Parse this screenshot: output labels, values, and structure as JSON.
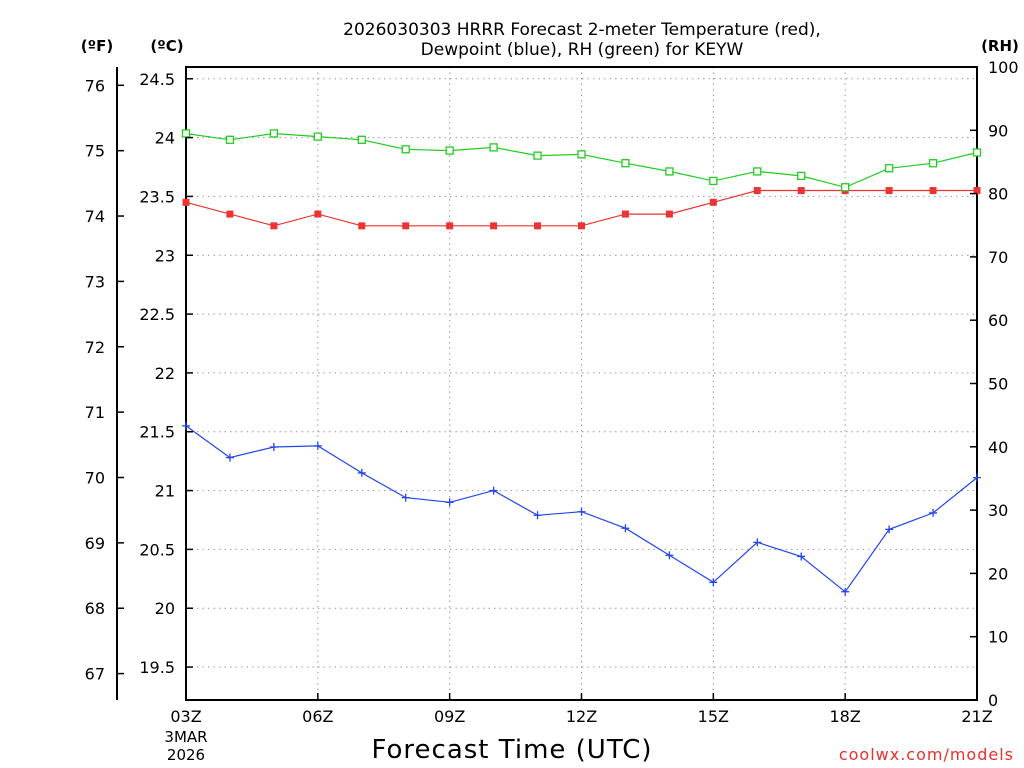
{
  "chart_data": {
    "type": "line",
    "title_line1": "2026030303 HRRR Forecast 2-meter Temperature (red),",
    "title_line2": "Dewpoint (blue), RH (green) for KEYW",
    "unit_f": "(ºF)",
    "unit_c": "(ºC)",
    "unit_rh": "(RH)",
    "xlabel": "Forecast Time (UTC)",
    "date_labels": [
      "3MAR",
      "2026"
    ],
    "credit": "coolwx.com/models",
    "x_hours": [
      3,
      4,
      5,
      6,
      7,
      8,
      9,
      10,
      11,
      12,
      13,
      14,
      15,
      16,
      17,
      18,
      19,
      20,
      21
    ],
    "x_ticks": [
      {
        "hour": 3,
        "label": "03Z"
      },
      {
        "hour": 6,
        "label": "06Z"
      },
      {
        "hour": 9,
        "label": "09Z"
      },
      {
        "hour": 12,
        "label": "12Z"
      },
      {
        "hour": 15,
        "label": "15Z"
      },
      {
        "hour": 18,
        "label": "18Z"
      },
      {
        "hour": 21,
        "label": "21Z"
      }
    ],
    "xlim": [
      3,
      21
    ],
    "ylim_c": [
      19.22,
      24.6
    ],
    "ylim_rh": [
      0,
      100
    ],
    "c_ticks": [
      {
        "value": 19.5,
        "label": "19.5"
      },
      {
        "value": 20,
        "label": "20"
      },
      {
        "value": 20.5,
        "label": "20.5"
      },
      {
        "value": 21,
        "label": "21"
      },
      {
        "value": 21.5,
        "label": "21.5"
      },
      {
        "value": 22,
        "label": "22"
      },
      {
        "value": 22.5,
        "label": "22.5"
      },
      {
        "value": 23,
        "label": "23"
      },
      {
        "value": 23.5,
        "label": "23.5"
      },
      {
        "value": 24,
        "label": "24"
      },
      {
        "value": 24.5,
        "label": "24.5"
      }
    ],
    "f_ticks": [
      {
        "value": 67,
        "label": "67"
      },
      {
        "value": 68,
        "label": "68"
      },
      {
        "value": 69,
        "label": "69"
      },
      {
        "value": 70,
        "label": "70"
      },
      {
        "value": 71,
        "label": "71"
      },
      {
        "value": 72,
        "label": "72"
      },
      {
        "value": 73,
        "label": "73"
      },
      {
        "value": 74,
        "label": "74"
      },
      {
        "value": 75,
        "label": "75"
      },
      {
        "value": 76,
        "label": "76"
      }
    ],
    "rh_ticks": [
      {
        "value": 0,
        "label": "0"
      },
      {
        "value": 10,
        "label": "10"
      },
      {
        "value": 20,
        "label": "20"
      },
      {
        "value": 30,
        "label": "30"
      },
      {
        "value": 40,
        "label": "40"
      },
      {
        "value": 50,
        "label": "50"
      },
      {
        "value": 60,
        "label": "60"
      },
      {
        "value": 70,
        "label": "70"
      },
      {
        "value": 80,
        "label": "80"
      },
      {
        "value": 90,
        "label": "90"
      },
      {
        "value": 100,
        "label": "100"
      }
    ],
    "series": [
      {
        "name": "Temperature",
        "axis": "c",
        "color": "#ee3333",
        "marker": "filled-square",
        "values": [
          23.45,
          23.35,
          23.25,
          23.35,
          23.25,
          23.25,
          23.25,
          23.25,
          23.25,
          23.25,
          23.35,
          23.35,
          23.45,
          23.55,
          23.55,
          23.55,
          23.55,
          23.55,
          23.55
        ]
      },
      {
        "name": "Dewpoint",
        "axis": "c",
        "color": "#2244ee",
        "marker": "plus",
        "values": [
          21.55,
          21.28,
          21.37,
          21.38,
          21.15,
          20.94,
          20.9,
          21.0,
          20.79,
          20.82,
          20.68,
          20.45,
          20.22,
          20.56,
          20.44,
          20.14,
          20.67,
          20.81,
          21.11
        ]
      },
      {
        "name": "RH",
        "axis": "rh",
        "color": "#22cc22",
        "marker": "open-square",
        "values": [
          89.5,
          88.5,
          89.5,
          89.0,
          88.5,
          87.0,
          86.8,
          87.3,
          86.0,
          86.2,
          84.8,
          83.5,
          82.0,
          83.5,
          82.8,
          81.0,
          84.0,
          84.8,
          86.5
        ]
      }
    ]
  }
}
